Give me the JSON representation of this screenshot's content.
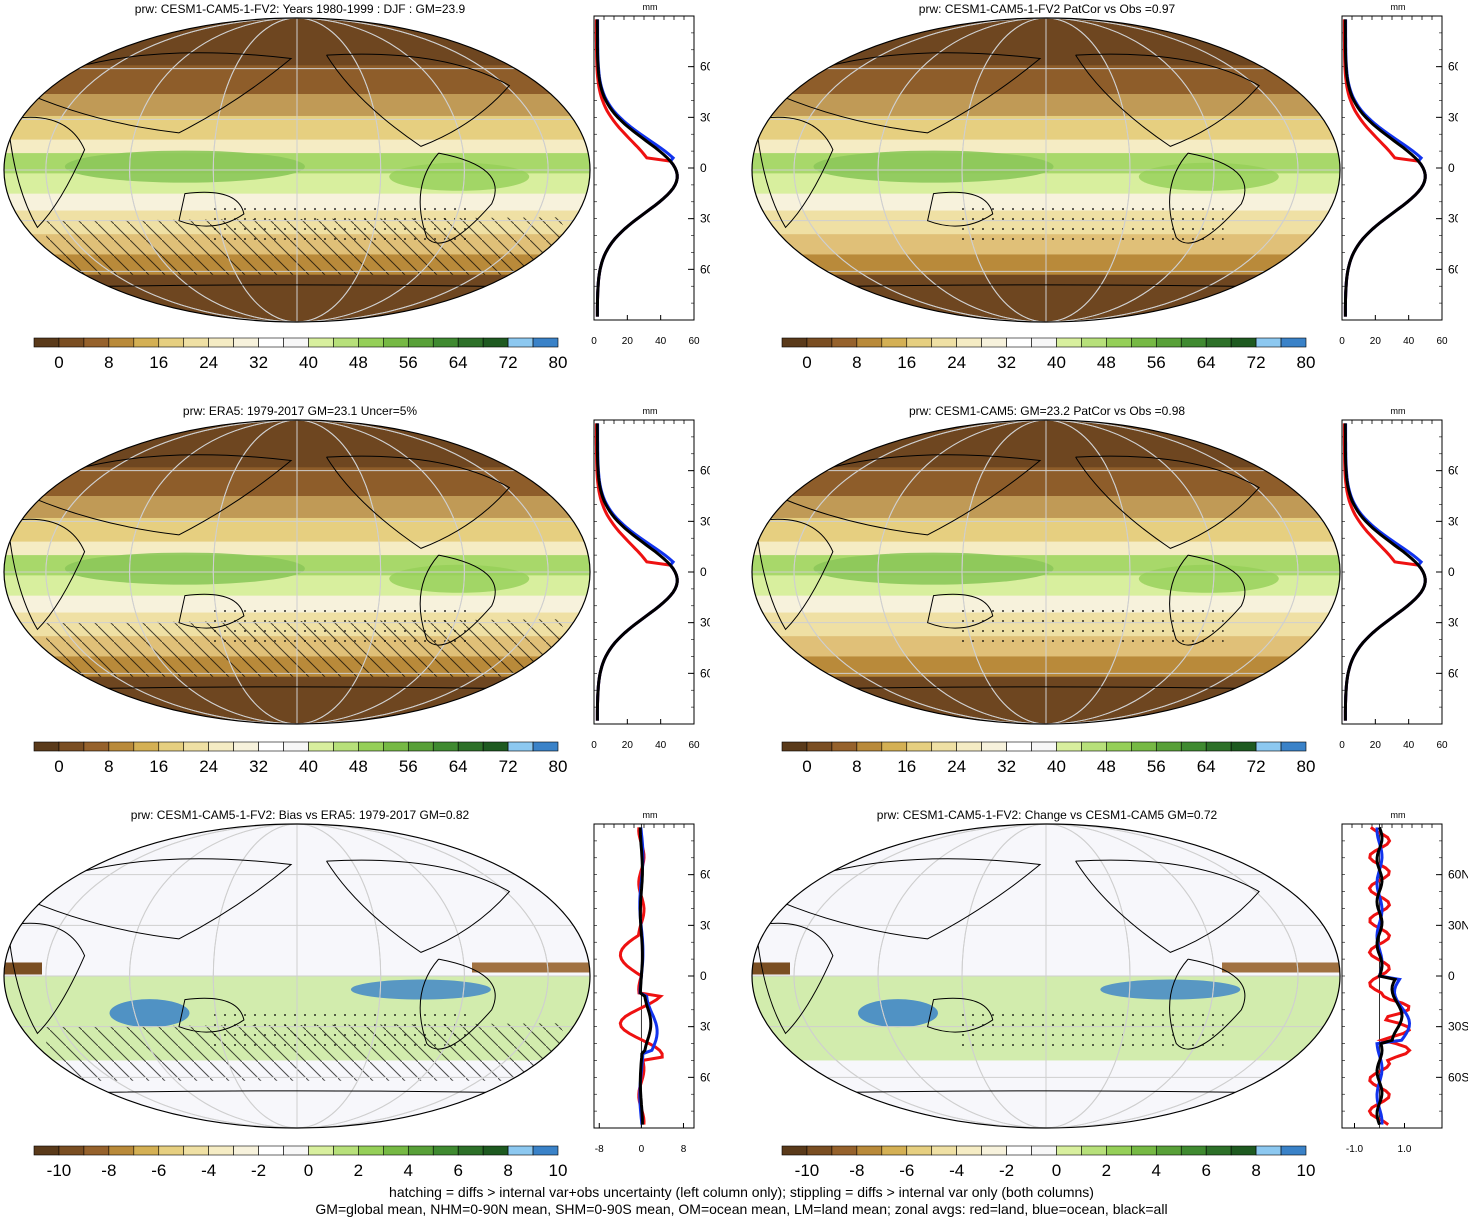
{
  "panels": [
    {
      "title": "prw: CESM1-CAM5-1-FV2: Years 1980-1999 : DJF : GM=23.9",
      "kind": "mean"
    },
    {
      "title": "prw: CESM1-CAM5-1-FV2 PatCor vs Obs =0.97",
      "kind": "mean"
    },
    {
      "title": "prw: ERA5: 1979-2017 GM=23.1 Uncer=5%",
      "kind": "mean"
    },
    {
      "title": "prw: CESM1-CAM5: GM=23.2 PatCor vs Obs =0.98",
      "kind": "mean"
    },
    {
      "title": "prw: CESM1-CAM5-1-FV2: Bias vs ERA5: 1979-2017 GM=0.82",
      "kind": "diff"
    },
    {
      "title": "prw: CESM1-CAM5-1-FV2: Change vs CESM1-CAM5 GM=0.72",
      "kind": "diff"
    }
  ],
  "zonal": {
    "unit": "mm",
    "lat_labels": [
      "60N",
      "30N",
      "0",
      "30S",
      "60S"
    ],
    "mean_ticks": [
      "0",
      "20",
      "40",
      "60"
    ],
    "bias_ticks": [
      "-8",
      "0",
      "8"
    ],
    "change_ticks": [
      "-1.0",
      "1.0"
    ],
    "colors": {
      "land": "#ee1111",
      "ocean": "#1133ee",
      "all": "#000000"
    }
  },
  "colorbars": {
    "mean_labels": [
      "0",
      "8",
      "16",
      "24",
      "32",
      "40",
      "48",
      "56",
      "64",
      "72",
      "80"
    ],
    "diff_labels": [
      "-10",
      "-8",
      "-6",
      "-4",
      "-2",
      "0",
      "2",
      "4",
      "6",
      "8",
      "10"
    ],
    "colors": [
      "#5a3a1a",
      "#7a4e22",
      "#96622c",
      "#b98a3a",
      "#d4b054",
      "#e6cf80",
      "#efe0a4",
      "#f5ecc4",
      "#f7f2dc",
      "#ffffff",
      "#f7f7f7",
      "#d8ef9e",
      "#b7e07a",
      "#95cf58",
      "#76b944",
      "#58a038",
      "#3f8a30",
      "#2d7028",
      "#1e5a20",
      "#8cc8f0",
      "#3a82c8"
    ]
  },
  "footer": {
    "line1": "hatching = diffs > internal var+obs uncertainty (left column only); stippling = diffs > internal var only (both columns)",
    "line2": "GM=global mean, NHM=0-90N mean, SHM=0-90S mean, OM=ocean mean, LM=land mean; zonal avgs: red=land, blue=ocean, black=all"
  }
}
